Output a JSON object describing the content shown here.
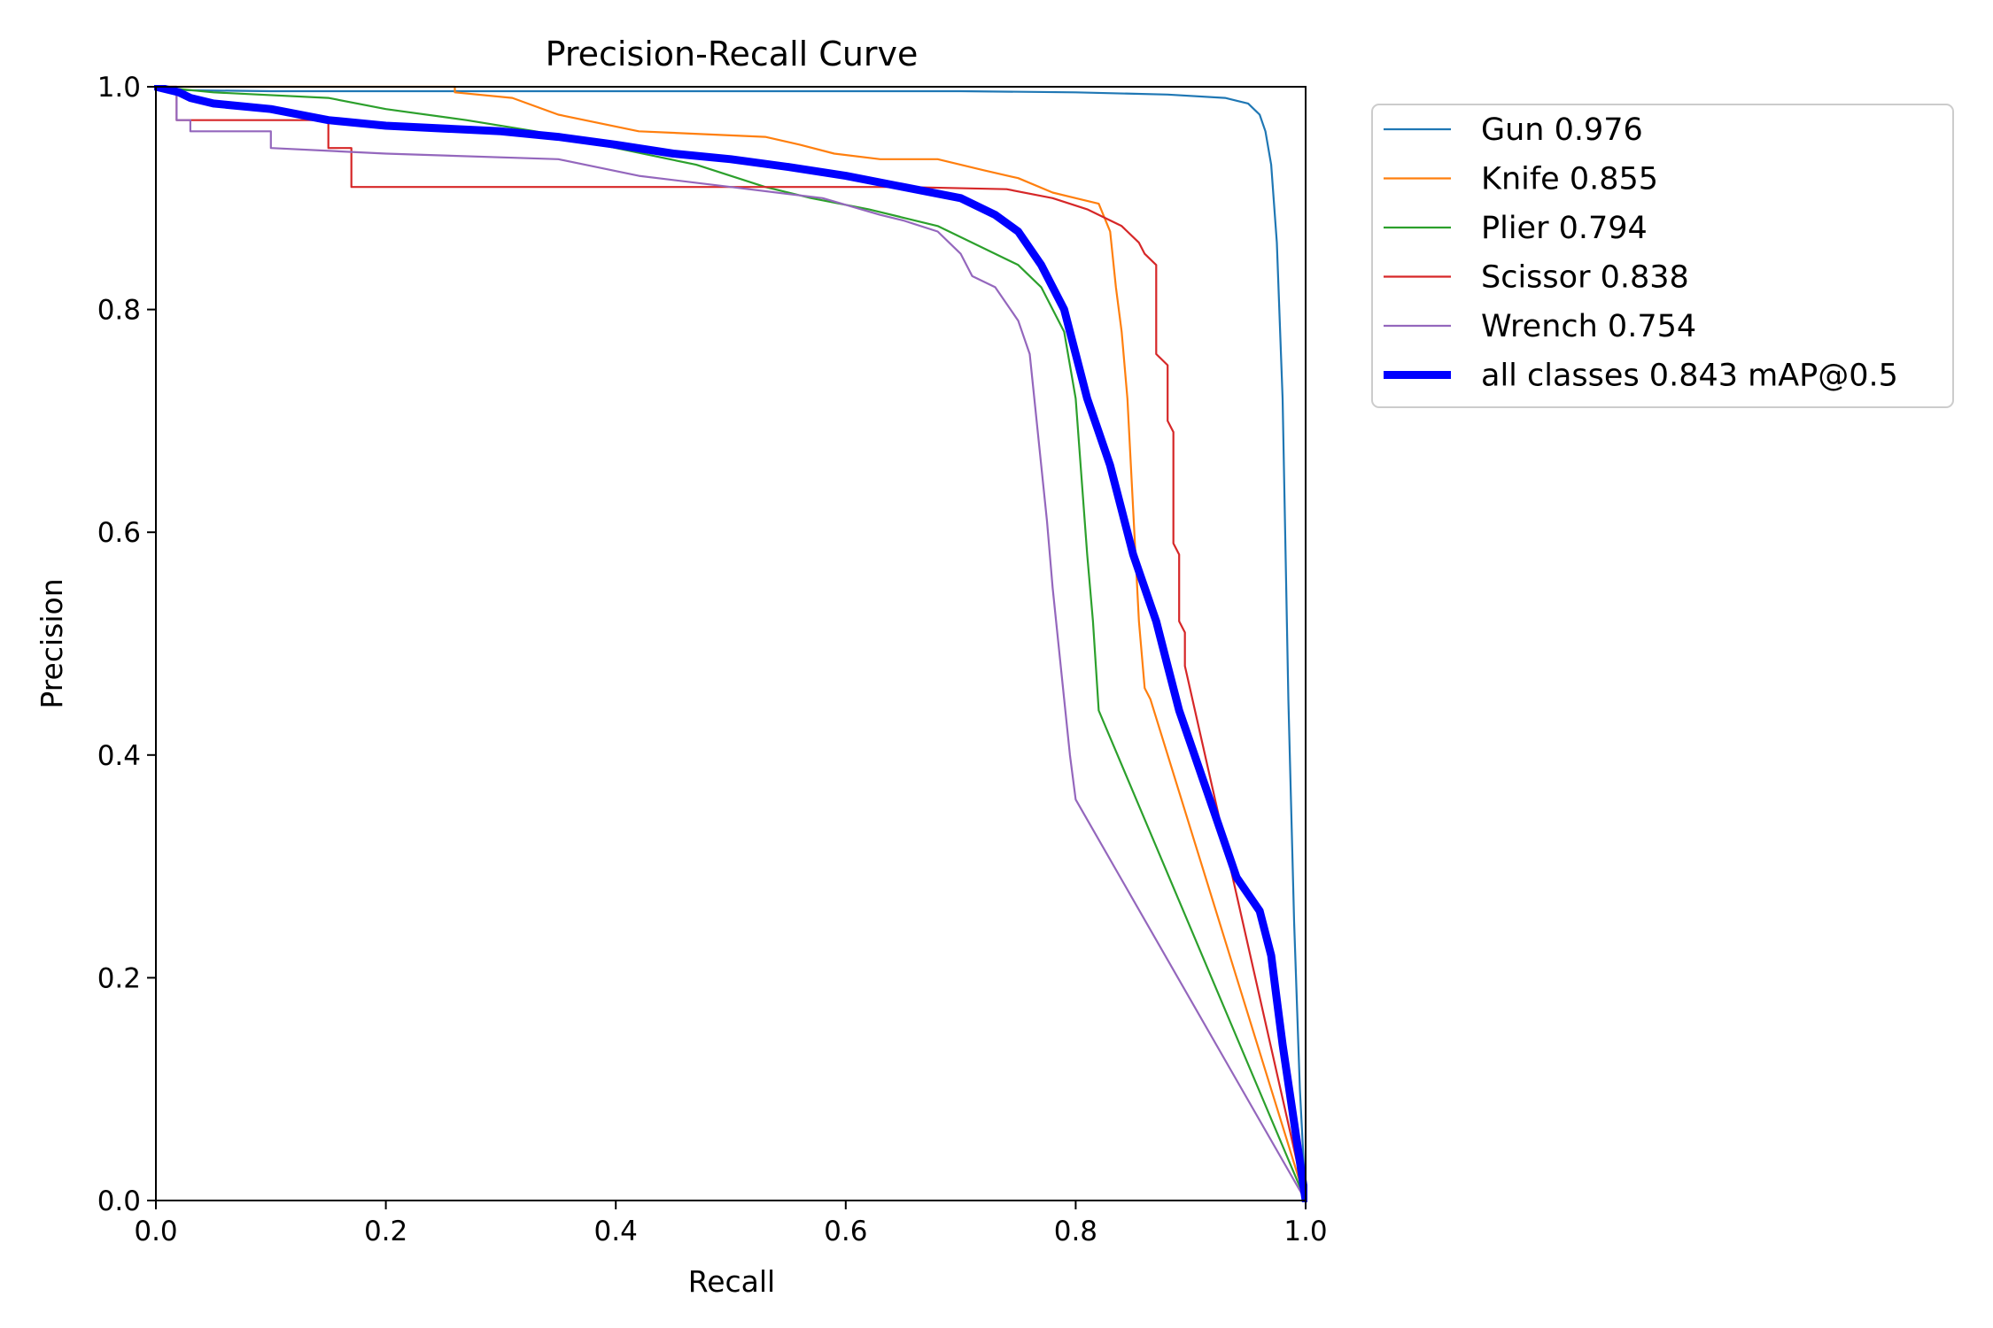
{
  "chart_data": {
    "type": "line",
    "title": "Precision-Recall Curve",
    "xlabel": "Recall",
    "ylabel": "Precision",
    "xlim": [
      0,
      1
    ],
    "ylim": [
      0,
      1
    ],
    "xticks": [
      "0.0",
      "0.2",
      "0.4",
      "0.6",
      "0.8",
      "1.0"
    ],
    "yticks": [
      "0.0",
      "0.2",
      "0.4",
      "0.6",
      "0.8",
      "1.0"
    ],
    "grid": false,
    "legend_position": "outside upper-right",
    "series": [
      {
        "name": "Gun 0.976",
        "color": "#1f77b4",
        "thick": false,
        "x": [
          0.0,
          0.02,
          0.1,
          0.3,
          0.5,
          0.7,
          0.8,
          0.88,
          0.93,
          0.95,
          0.96,
          0.965,
          0.97,
          0.975,
          0.98,
          0.985,
          0.99,
          0.995,
          1.0
        ],
        "y": [
          1.0,
          0.997,
          0.996,
          0.996,
          0.996,
          0.996,
          0.995,
          0.993,
          0.99,
          0.985,
          0.975,
          0.96,
          0.93,
          0.86,
          0.72,
          0.45,
          0.25,
          0.1,
          0.0
        ]
      },
      {
        "name": "Knife 0.855",
        "color": "#ff7f0e",
        "thick": false,
        "x": [
          0.0,
          0.1,
          0.26,
          0.26,
          0.31,
          0.35,
          0.42,
          0.53,
          0.56,
          0.59,
          0.63,
          0.68,
          0.72,
          0.75,
          0.78,
          0.8,
          0.82,
          0.83,
          0.835,
          0.84,
          0.845,
          0.85,
          0.855,
          0.86,
          0.865,
          1.0
        ],
        "y": [
          1.0,
          1.0,
          1.0,
          0.995,
          0.99,
          0.975,
          0.96,
          0.955,
          0.948,
          0.94,
          0.935,
          0.935,
          0.925,
          0.918,
          0.905,
          0.9,
          0.895,
          0.87,
          0.82,
          0.78,
          0.72,
          0.62,
          0.52,
          0.46,
          0.45,
          0.0
        ]
      },
      {
        "name": "Plier 0.794",
        "color": "#2ca02c",
        "thick": false,
        "x": [
          0.0,
          0.05,
          0.15,
          0.2,
          0.27,
          0.33,
          0.4,
          0.47,
          0.53,
          0.57,
          0.62,
          0.68,
          0.71,
          0.75,
          0.77,
          0.79,
          0.8,
          0.805,
          0.81,
          0.815,
          0.82,
          1.0
        ],
        "y": [
          1.0,
          0.995,
          0.99,
          0.98,
          0.97,
          0.96,
          0.945,
          0.93,
          0.91,
          0.9,
          0.89,
          0.875,
          0.86,
          0.84,
          0.82,
          0.78,
          0.72,
          0.65,
          0.58,
          0.52,
          0.44,
          0.0
        ]
      },
      {
        "name": "Scissor 0.838",
        "color": "#d62728",
        "thick": false,
        "x": [
          0.0,
          0.018,
          0.018,
          0.15,
          0.15,
          0.17,
          0.17,
          0.5,
          0.65,
          0.74,
          0.78,
          0.81,
          0.84,
          0.855,
          0.86,
          0.87,
          0.87,
          0.88,
          0.88,
          0.885,
          0.885,
          0.89,
          0.89,
          0.895,
          0.895,
          1.0
        ],
        "y": [
          1.0,
          1.0,
          0.97,
          0.97,
          0.945,
          0.945,
          0.91,
          0.91,
          0.91,
          0.908,
          0.9,
          0.89,
          0.875,
          0.86,
          0.85,
          0.84,
          0.76,
          0.75,
          0.7,
          0.69,
          0.59,
          0.58,
          0.52,
          0.51,
          0.48,
          0.0
        ]
      },
      {
        "name": "Wrench 0.754",
        "color": "#9467bd",
        "thick": false,
        "x": [
          0.0,
          0.018,
          0.018,
          0.03,
          0.03,
          0.1,
          0.1,
          0.2,
          0.35,
          0.42,
          0.5,
          0.58,
          0.63,
          0.65,
          0.68,
          0.7,
          0.71,
          0.73,
          0.75,
          0.76,
          0.765,
          0.77,
          0.775,
          0.78,
          0.785,
          0.79,
          0.795,
          0.8,
          1.0
        ],
        "y": [
          1.0,
          1.0,
          0.97,
          0.97,
          0.96,
          0.96,
          0.945,
          0.94,
          0.935,
          0.92,
          0.91,
          0.9,
          0.885,
          0.88,
          0.87,
          0.85,
          0.83,
          0.82,
          0.79,
          0.76,
          0.71,
          0.66,
          0.61,
          0.55,
          0.5,
          0.45,
          0.4,
          0.36,
          0.0
        ]
      },
      {
        "name": "all classes 0.843 mAP@0.5",
        "color": "#0000ff",
        "thick": true,
        "x": [
          0.0,
          0.02,
          0.03,
          0.05,
          0.1,
          0.15,
          0.2,
          0.3,
          0.35,
          0.4,
          0.45,
          0.5,
          0.55,
          0.6,
          0.65,
          0.7,
          0.73,
          0.75,
          0.77,
          0.79,
          0.8,
          0.81,
          0.82,
          0.83,
          0.84,
          0.85,
          0.86,
          0.87,
          0.88,
          0.89,
          0.9,
          0.92,
          0.94,
          0.96,
          0.97,
          0.975,
          0.98,
          0.99,
          1.0
        ],
        "y": [
          1.0,
          0.995,
          0.99,
          0.985,
          0.98,
          0.97,
          0.965,
          0.96,
          0.955,
          0.948,
          0.94,
          0.935,
          0.928,
          0.92,
          0.91,
          0.9,
          0.885,
          0.87,
          0.84,
          0.8,
          0.76,
          0.72,
          0.69,
          0.66,
          0.62,
          0.58,
          0.55,
          0.52,
          0.48,
          0.44,
          0.41,
          0.35,
          0.29,
          0.26,
          0.22,
          0.18,
          0.14,
          0.07,
          0.0
        ]
      }
    ]
  }
}
